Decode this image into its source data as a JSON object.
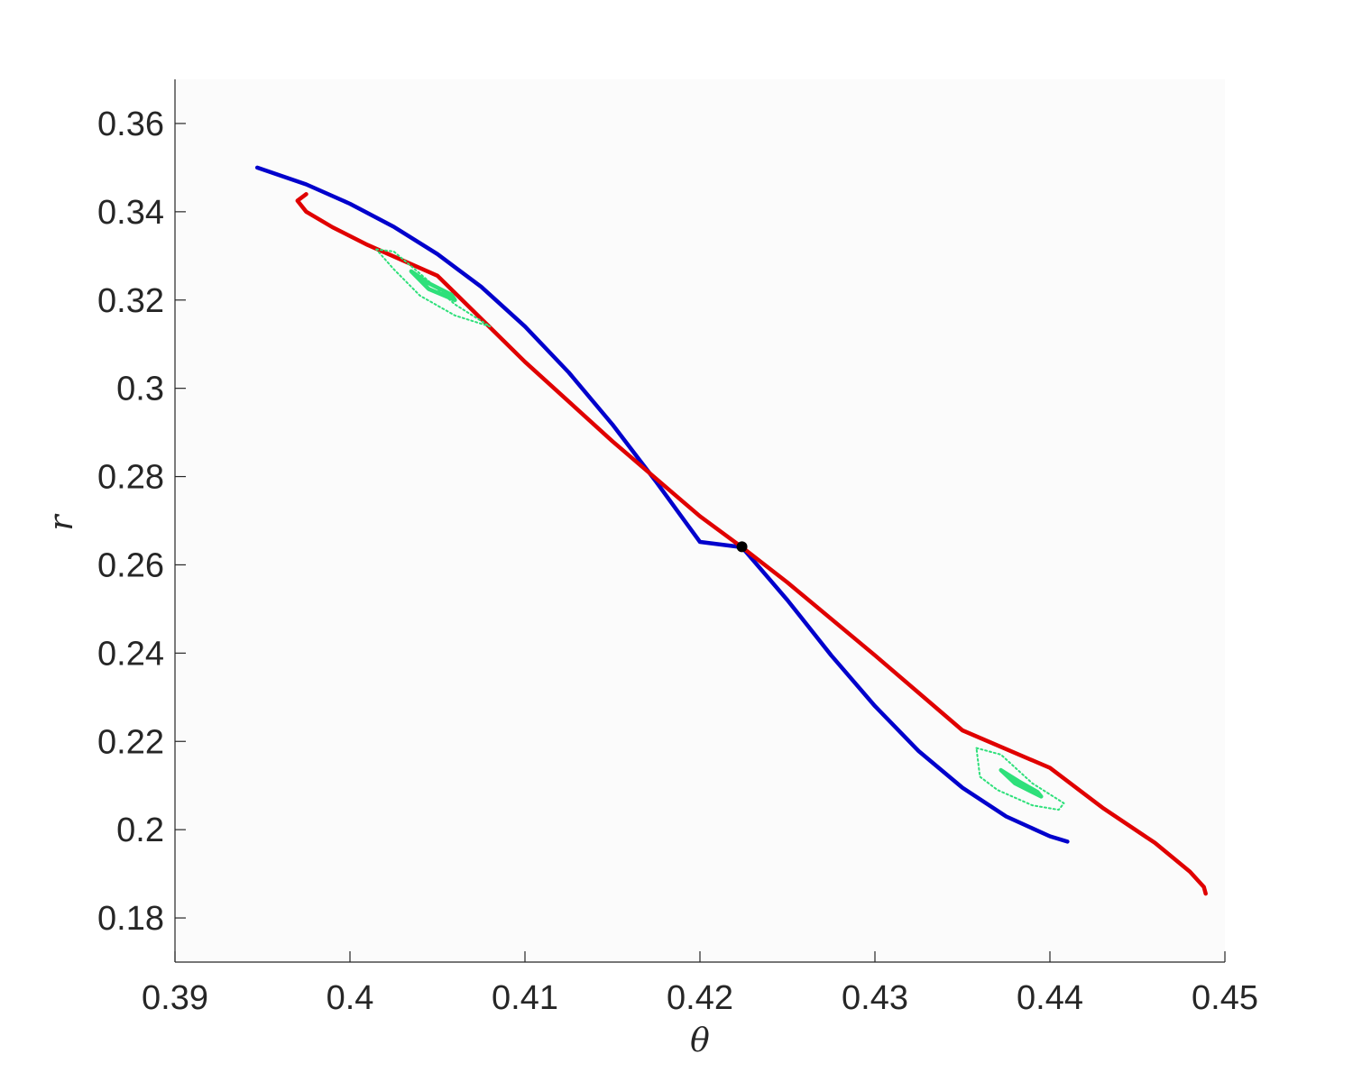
{
  "chart_data": {
    "type": "line",
    "title": "",
    "xlabel": "θ",
    "ylabel": "r",
    "xlim": [
      0.39,
      0.45
    ],
    "ylim": [
      0.17,
      0.37
    ],
    "xticks": [
      0.39,
      0.4,
      0.41,
      0.42,
      0.43,
      0.44,
      0.45
    ],
    "xtick_labels": [
      "0.39",
      "0.4",
      "0.41",
      "0.42",
      "0.43",
      "0.44",
      "0.45"
    ],
    "yticks": [
      0.18,
      0.2,
      0.22,
      0.24,
      0.26,
      0.28,
      0.3,
      0.32,
      0.34,
      0.36
    ],
    "ytick_labels": [
      "0.18",
      "0.2",
      "0.22",
      "0.24",
      "0.26",
      "0.28",
      "0.3",
      "0.32",
      "0.34",
      "0.36"
    ],
    "grid": false,
    "legend": "none",
    "series": [
      {
        "color": "#0000cc",
        "style": "solid",
        "x": [
          0.3947,
          0.3975,
          0.4,
          0.4025,
          0.405,
          0.4075,
          0.41,
          0.4125,
          0.415,
          0.4175,
          0.42,
          0.4224,
          0.425,
          0.4275,
          0.43,
          0.4325,
          0.435,
          0.4375,
          0.44,
          0.441
        ],
        "y": [
          0.35,
          0.3462,
          0.3418,
          0.3366,
          0.3304,
          0.323,
          0.314,
          0.3036,
          0.2918,
          0.2788,
          0.2652,
          0.264,
          0.252,
          0.2395,
          0.228,
          0.2178,
          0.2095,
          0.203,
          0.1985,
          0.1973
        ]
      },
      {
        "color": "#e00000",
        "style": "solid",
        "x": [
          0.3975,
          0.397,
          0.3975,
          0.399,
          0.401,
          0.405,
          0.41,
          0.415,
          0.42,
          0.4224,
          0.425,
          0.43,
          0.435,
          0.44,
          0.443,
          0.446,
          0.448,
          0.4488,
          0.4489
        ],
        "y": [
          0.344,
          0.3425,
          0.34,
          0.3365,
          0.3325,
          0.3255,
          0.306,
          0.288,
          0.271,
          0.264,
          0.256,
          0.2395,
          0.2225,
          0.214,
          0.205,
          0.197,
          0.1905,
          0.187,
          0.1855
        ]
      },
      {
        "color": "#2ee07a",
        "style": "dotted",
        "closed": true,
        "x": [
          0.4015,
          0.4025,
          0.404,
          0.406,
          0.408,
          0.406,
          0.404,
          0.4025,
          0.4015
        ],
        "y": [
          0.3315,
          0.331,
          0.326,
          0.319,
          0.314,
          0.3165,
          0.321,
          0.327,
          0.3315
        ]
      },
      {
        "color": "#2ee07a",
        "style": "solid",
        "closed": true,
        "x": [
          0.4035,
          0.4045,
          0.4058,
          0.406,
          0.4045,
          0.4035
        ],
        "y": [
          0.3265,
          0.3238,
          0.3212,
          0.32,
          0.3225,
          0.3265
        ]
      },
      {
        "color": "#2ee07a",
        "style": "dotted",
        "closed": true,
        "x": [
          0.4358,
          0.4372,
          0.439,
          0.4408,
          0.4405,
          0.439,
          0.437,
          0.436,
          0.4358
        ],
        "y": [
          0.2185,
          0.217,
          0.2105,
          0.206,
          0.2045,
          0.2055,
          0.209,
          0.212,
          0.2185
        ]
      },
      {
        "color": "#2ee07a",
        "style": "solid",
        "closed": true,
        "x": [
          0.4372,
          0.4382,
          0.4393,
          0.4395,
          0.438,
          0.4372
        ],
        "y": [
          0.2135,
          0.211,
          0.2085,
          0.2075,
          0.2105,
          0.2135
        ]
      }
    ],
    "points": [
      {
        "x": 0.4224,
        "y": 0.2641,
        "color": "#000000"
      }
    ]
  }
}
